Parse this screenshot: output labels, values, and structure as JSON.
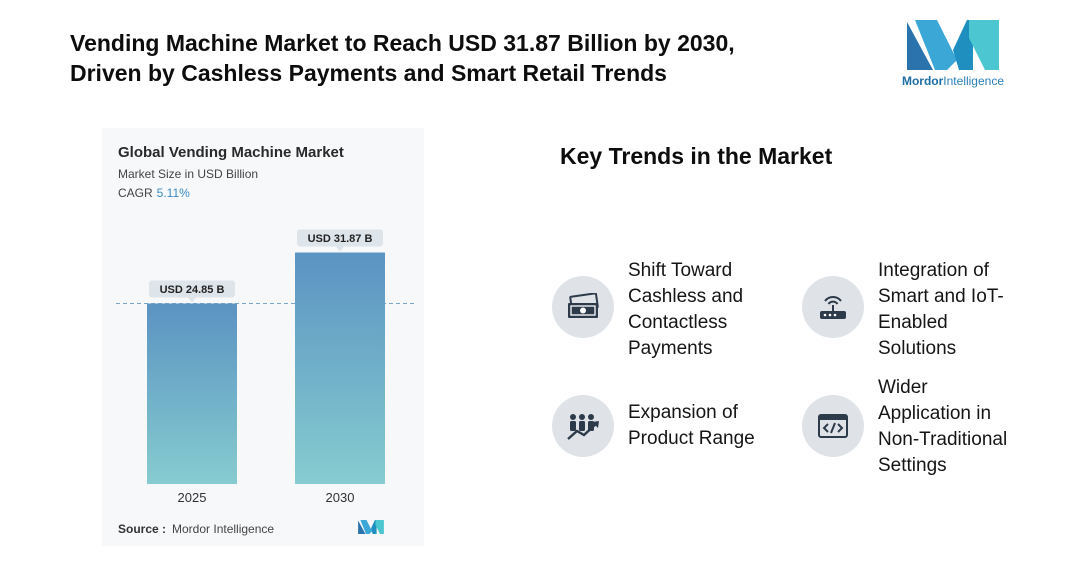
{
  "headline": {
    "line1": "Vending Machine Market to Reach USD 31.87 Billion by 2030,",
    "line2": "Driven by Cashless Payments and Smart Retail Trends"
  },
  "brand": {
    "name_bold": "Mordor",
    "name_rest": "Intelligence"
  },
  "colors": {
    "bar_top": "#5b93c2",
    "bar_bottom": "#86ccd0",
    "accent": "#3c8cc4",
    "icon_bg": "#dfe3e8",
    "icon_dark": "#2c3a4a"
  },
  "chart_data": {
    "type": "bar",
    "title": "Global Vending Machine Market",
    "subtitle": "Market Size in USD Billion",
    "cagr_label": "CAGR",
    "cagr_value": "5.11%",
    "categories": [
      "2025",
      "2030"
    ],
    "values": [
      24.85,
      31.87
    ],
    "data_labels": [
      "USD 24.85 B",
      "USD 31.87 B"
    ],
    "ylim": [
      0,
      38
    ],
    "reference_line": 24.85,
    "source_label": "Source :",
    "source_value": "Mordor Intelligence"
  },
  "trends": {
    "title": "Key Trends in the Market",
    "items": [
      {
        "label": "Shift Toward\nCashless and\nContactless\nPayments",
        "icon": "cash-payment-icon"
      },
      {
        "label": "Integration of\nSmart and IoT-\nEnabled\nSolutions",
        "icon": "iot-router-icon"
      },
      {
        "label": "Expansion of\nProduct Range",
        "icon": "growth-people-icon"
      },
      {
        "label": "Wider\nApplication in\nNon-Traditional\nSettings",
        "icon": "code-window-icon"
      }
    ]
  }
}
